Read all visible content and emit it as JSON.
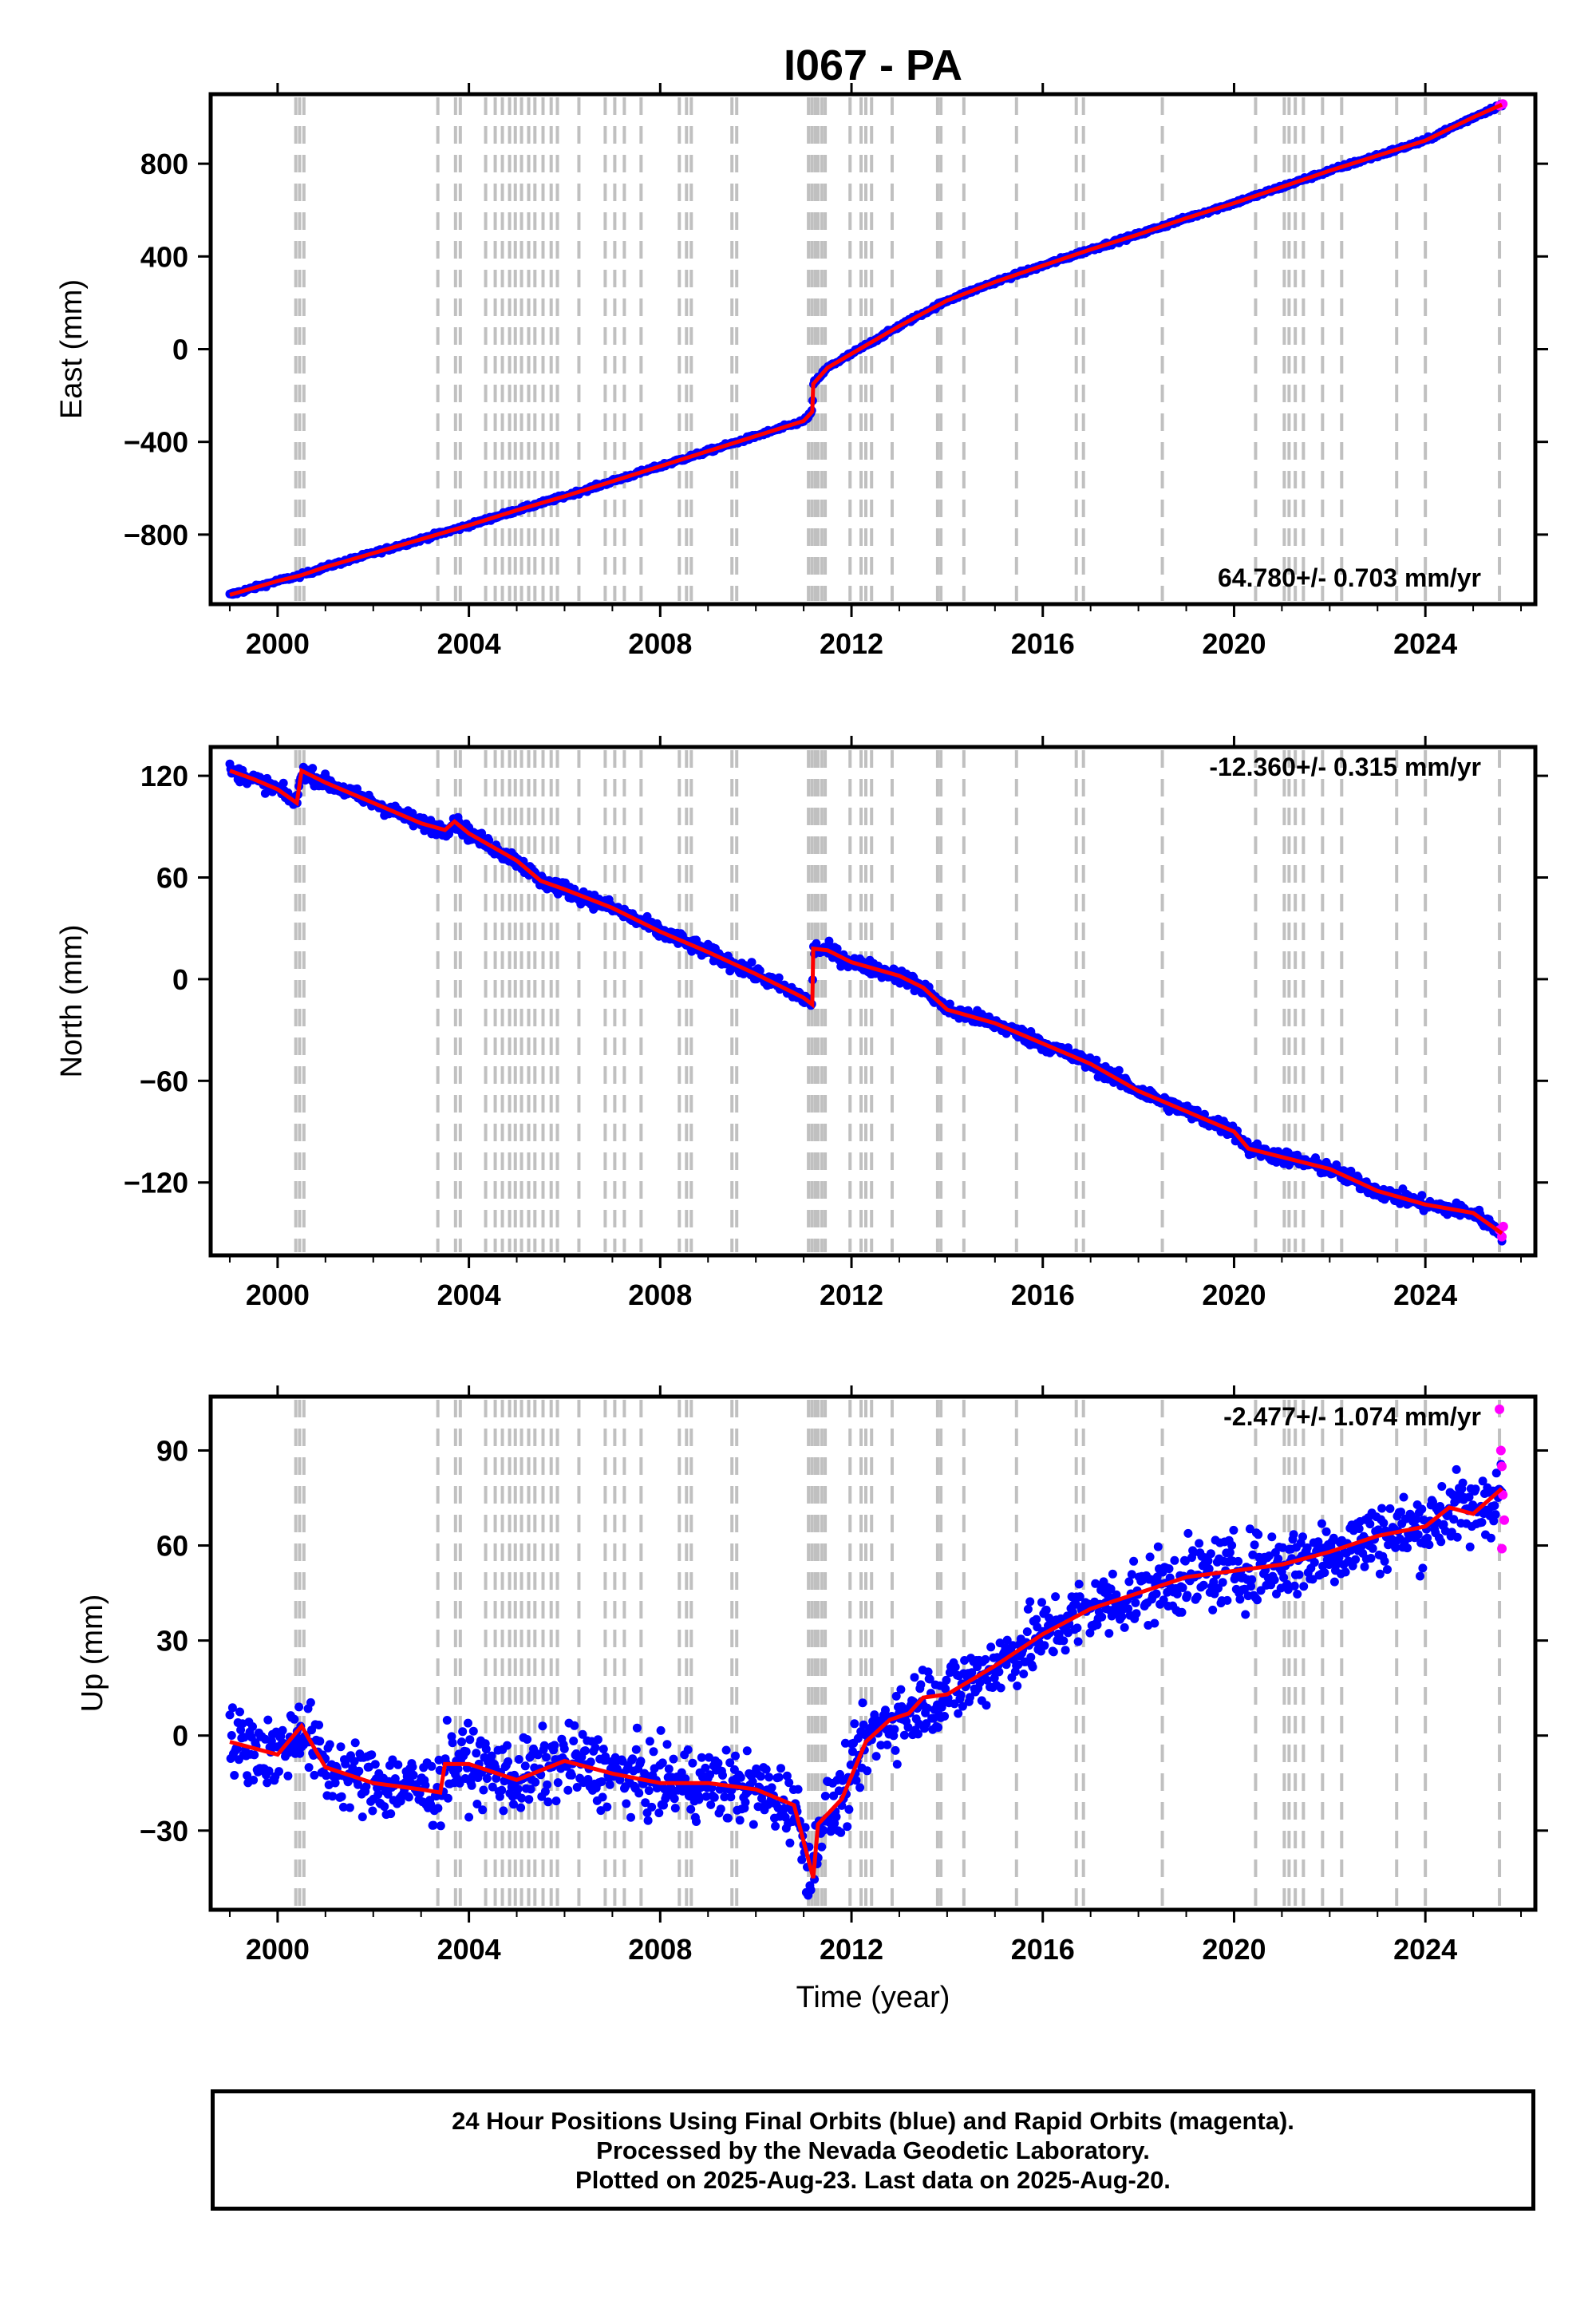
{
  "title": "I067 - PA",
  "colors": {
    "final_orbits": "#0000ff",
    "rapid_orbits": "#ff00ff",
    "model": "#ff0000",
    "event_lines": "#c0c0c0",
    "frame": "#000000"
  },
  "xlabel": "Time (year)",
  "caption": [
    "24 Hour Positions Using Final Orbits (blue) and Rapid Orbits (magenta).",
    "Processed by the Nevada Geodetic Laboratory.",
    "Plotted on 2025-Aug-23. Last data on 2025-Aug-20."
  ],
  "event_lines_years": [
    2000.38,
    2000.46,
    2000.55,
    2003.35,
    2003.72,
    2003.82,
    2004.35,
    2004.55,
    2004.7,
    2004.85,
    2004.97,
    2005.1,
    2005.25,
    2005.38,
    2005.55,
    2005.72,
    2005.85,
    2006.3,
    2006.85,
    2007.05,
    2007.25,
    2007.6,
    2008.4,
    2008.55,
    2008.65,
    2009.5,
    2009.6,
    2011.1,
    2011.17,
    2011.24,
    2011.3,
    2011.38,
    2011.45,
    2011.97,
    2012.2,
    2012.3,
    2012.42,
    2012.85,
    2013.8,
    2013.87,
    2014.35,
    2015.45,
    2016.7,
    2016.85,
    2018.5,
    2020.45,
    2021.05,
    2021.15,
    2021.28,
    2021.45,
    2021.85,
    2022.25,
    2023.4,
    2024.0,
    2025.55
  ],
  "chart_data": [
    {
      "type": "scatter",
      "name": "east",
      "ylabel": "East (mm)",
      "xlim": [
        1998.6,
        2026.3
      ],
      "ylim": [
        -1100,
        1100
      ],
      "yticks": [
        -800,
        -400,
        0,
        400,
        800
      ],
      "ytick_labels": [
        "−800",
        "−400",
        "0",
        "400",
        "800"
      ],
      "xticks": [
        2000,
        2004,
        2008,
        2012,
        2016,
        2020,
        2024
      ],
      "xtick_labels": [
        "2000",
        "2004",
        "2008",
        "2012",
        "2016",
        "2020",
        "2024"
      ],
      "rate_label": "64.780+/- 0.703 mm/yr",
      "grid": false,
      "series_points": [
        [
          1999.0,
          -1060
        ],
        [
          2000.0,
          -1000
        ],
        [
          2000.5,
          -975
        ],
        [
          2001.0,
          -940
        ],
        [
          2002.0,
          -880
        ],
        [
          2003.0,
          -820
        ],
        [
          2004.0,
          -760
        ],
        [
          2005.0,
          -695
        ],
        [
          2006.0,
          -635
        ],
        [
          2007.0,
          -570
        ],
        [
          2008.0,
          -505
        ],
        [
          2009.0,
          -440
        ],
        [
          2010.0,
          -375
        ],
        [
          2011.0,
          -310
        ],
        [
          2011.18,
          -270
        ],
        [
          2011.2,
          -150
        ],
        [
          2011.5,
          -80
        ],
        [
          2012.0,
          -20
        ],
        [
          2013.0,
          100
        ],
        [
          2014.0,
          210
        ],
        [
          2015.0,
          290
        ],
        [
          2016.0,
          360
        ],
        [
          2017.0,
          430
        ],
        [
          2018.0,
          495
        ],
        [
          2019.0,
          565
        ],
        [
          2020.0,
          630
        ],
        [
          2021.0,
          700
        ],
        [
          2022.0,
          770
        ],
        [
          2023.0,
          835
        ],
        [
          2024.0,
          900
        ],
        [
          2025.0,
          1000
        ],
        [
          2025.6,
          1055
        ]
      ],
      "noise": 6,
      "rapid_points": [
        [
          2025.55,
          1050
        ],
        [
          2025.62,
          1058
        ]
      ]
    },
    {
      "type": "scatter",
      "name": "north",
      "ylabel": "North (mm)",
      "xlim": [
        1998.6,
        2026.3
      ],
      "ylim": [
        -163,
        137
      ],
      "yticks": [
        -120,
        -60,
        0,
        60,
        120
      ],
      "ytick_labels": [
        "−120",
        "−60",
        "0",
        "60",
        "120"
      ],
      "xticks": [
        2000,
        2004,
        2008,
        2012,
        2016,
        2020,
        2024
      ],
      "xtick_labels": [
        "2000",
        "2004",
        "2008",
        "2012",
        "2016",
        "2020",
        "2024"
      ],
      "rate_label": "-12.360+/- 0.315 mm/yr",
      "grid": false,
      "series_points": [
        [
          1999.0,
          123
        ],
        [
          1999.5,
          118
        ],
        [
          2000.0,
          112
        ],
        [
          2000.4,
          104
        ],
        [
          2000.5,
          123
        ],
        [
          2001.0,
          116
        ],
        [
          2002.0,
          104
        ],
        [
          2003.0,
          92
        ],
        [
          2003.5,
          88
        ],
        [
          2003.7,
          93
        ],
        [
          2004.0,
          86
        ],
        [
          2005.0,
          70
        ],
        [
          2005.5,
          58
        ],
        [
          2006.0,
          53
        ],
        [
          2007.0,
          42
        ],
        [
          2008.0,
          28
        ],
        [
          2009.0,
          16
        ],
        [
          2010.0,
          3
        ],
        [
          2011.0,
          -11
        ],
        [
          2011.18,
          -15
        ],
        [
          2011.2,
          18
        ],
        [
          2011.5,
          17
        ],
        [
          2012.0,
          10
        ],
        [
          2013.0,
          2
        ],
        [
          2013.5,
          -5
        ],
        [
          2014.0,
          -18
        ],
        [
          2015.0,
          -26
        ],
        [
          2016.0,
          -38
        ],
        [
          2017.0,
          -50
        ],
        [
          2018.0,
          -66
        ],
        [
          2019.0,
          -78
        ],
        [
          2020.0,
          -90
        ],
        [
          2020.3,
          -100
        ],
        [
          2021.0,
          -105
        ],
        [
          2022.0,
          -112
        ],
        [
          2023.0,
          -125
        ],
        [
          2024.0,
          -133
        ],
        [
          2025.0,
          -138
        ],
        [
          2025.6,
          -150
        ]
      ],
      "noise": 3,
      "rapid_points": [
        [
          2025.55,
          -148
        ],
        [
          2025.6,
          -152
        ],
        [
          2025.63,
          -146
        ]
      ]
    },
    {
      "type": "scatter",
      "name": "up",
      "ylabel": "Up (mm)",
      "xlim": [
        1998.6,
        2026.3
      ],
      "ylim": [
        -55,
        107
      ],
      "yticks": [
        -30,
        0,
        30,
        60,
        90
      ],
      "ytick_labels": [
        "−30",
        "0",
        "30",
        "60",
        "90"
      ],
      "xticks": [
        2000,
        2004,
        2008,
        2012,
        2016,
        2020,
        2024
      ],
      "xtick_labels": [
        "2000",
        "2004",
        "2008",
        "2012",
        "2016",
        "2020",
        "2024"
      ],
      "rate_label": "-2.477+/- 1.074 mm/yr",
      "grid": false,
      "series_points": [
        [
          1999.0,
          -2
        ],
        [
          2000.0,
          -6
        ],
        [
          2000.5,
          3
        ],
        [
          2001.0,
          -10
        ],
        [
          2002.0,
          -15
        ],
        [
          2003.0,
          -17
        ],
        [
          2003.4,
          -18
        ],
        [
          2003.5,
          -9
        ],
        [
          2004.0,
          -9
        ],
        [
          2005.0,
          -14
        ],
        [
          2006.0,
          -8
        ],
        [
          2007.0,
          -12
        ],
        [
          2008.0,
          -15
        ],
        [
          2009.0,
          -15
        ],
        [
          2010.0,
          -17
        ],
        [
          2010.8,
          -22
        ],
        [
          2011.2,
          -45
        ],
        [
          2011.3,
          -28
        ],
        [
          2011.8,
          -20
        ],
        [
          2012.3,
          -2
        ],
        [
          2012.8,
          5
        ],
        [
          2013.2,
          7
        ],
        [
          2013.5,
          12
        ],
        [
          2014.0,
          13
        ],
        [
          2015.0,
          22
        ],
        [
          2016.0,
          32
        ],
        [
          2017.0,
          40
        ],
        [
          2018.0,
          45
        ],
        [
          2019.0,
          50
        ],
        [
          2020.0,
          52
        ],
        [
          2021.0,
          54
        ],
        [
          2022.0,
          58
        ],
        [
          2023.0,
          63
        ],
        [
          2024.0,
          66
        ],
        [
          2024.5,
          72
        ],
        [
          2025.0,
          70
        ],
        [
          2025.6,
          78
        ]
      ],
      "noise": 8,
      "rapid_points": [
        [
          2025.55,
          103
        ],
        [
          2025.58,
          90
        ],
        [
          2025.6,
          85
        ],
        [
          2025.62,
          76
        ],
        [
          2025.65,
          68
        ],
        [
          2025.6,
          59
        ]
      ]
    }
  ]
}
